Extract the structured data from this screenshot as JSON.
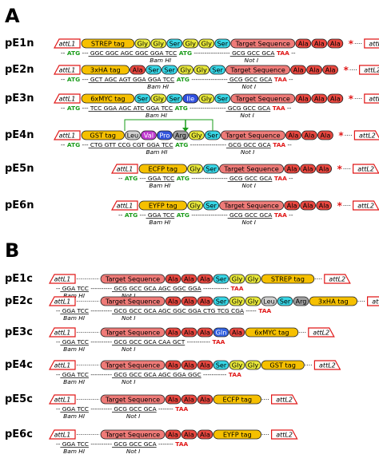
{
  "panels": [
    {
      "label": "A",
      "rows": [
        {
          "name": "pE1n",
          "left": "attL1",
          "right": "attL2",
          "tags": [
            "STREP tag",
            "Gly",
            "Gly",
            "Ser",
            "Gly",
            "Gly",
            "Ser",
            "Target Sequence",
            "Ala",
            "Ala",
            "Ala"
          ],
          "stop": "*",
          "line1": [
            "--",
            "ATG",
            "---",
            "GGC GGC AGC GGC GGA TCC",
            "ATG",
            "-----------------",
            "GCG GCC GCA",
            "TAA",
            "--"
          ],
          "site1": "Bam HI",
          "site2": "Not I"
        },
        {
          "name": "pE2n",
          "left": "attL1",
          "right": "attL2",
          "tags": [
            "3xHA tag",
            "Ala",
            "Ser",
            "Ser",
            "Gly",
            "Gly",
            "Ser",
            "Target Sequence",
            "Ala",
            "Ala",
            "Ala"
          ],
          "stop": "*",
          "line1": [
            "--",
            "ATG",
            "---",
            "GCT AGC AGT GGA GGA TCC",
            "ATG",
            "-----------------",
            "GCG GCC GCA",
            "TAA",
            "--"
          ],
          "site1": "Bam HI",
          "site2": "Not I"
        },
        {
          "name": "pE3n",
          "left": "attL1",
          "right": "attL2",
          "tags": [
            "6xMYC tag",
            "Ser",
            "Gly",
            "Ser",
            "Ile",
            "Gly",
            "Ser",
            "Target Sequence",
            "Ala",
            "Ala",
            "Ala"
          ],
          "stop": "*",
          "line1": [
            "--",
            "ATG",
            "---",
            "TCC GGA AGC ATC GGA TCC",
            "ATG",
            "-----------------",
            "GCG GCC GCA",
            "TAA",
            "--"
          ],
          "site1": "Bam HI",
          "site2": "Not I"
        },
        {
          "name": "pE4n",
          "left": "attL1",
          "right": "attL2",
          "tags": [
            "GST tag",
            "Leu",
            "Val",
            "Pro",
            "Arg",
            "Gly",
            "Ser",
            "Target Sequence",
            "Ala",
            "Ala",
            "Ala"
          ],
          "stop": "*",
          "line1": [
            "--",
            "ATG",
            "---",
            "CTG GTT CCG CGT GGA TCC",
            "ATG",
            "-----------------",
            "GCG GCC GCA",
            "TAA",
            "--"
          ],
          "site1": "Bam HI",
          "site2": "Not I"
        },
        {
          "name": "pE5n",
          "left": "attL1",
          "right": "attL2",
          "tags": [
            "ECFP tag",
            "Gly",
            "Ser",
            "Target Sequence",
            "Ala",
            "Ala",
            "Ala"
          ],
          "stop": "*",
          "line1": [
            "--",
            "ATG",
            "---",
            "GGA TCC",
            "ATG",
            "-----------------",
            "GCG GCC GCA",
            "TAA",
            "--"
          ],
          "site1": "Bam HI",
          "site2": "Not I"
        },
        {
          "name": "pE6n",
          "left": "attL1",
          "right": "attL2",
          "tags": [
            "EYFP tag",
            "Gly",
            "Ser",
            "Target Sequence",
            "Ala",
            "Ala",
            "Ala"
          ],
          "stop": "*",
          "line1": [
            "--",
            "ATG",
            "---",
            "GGA TCC",
            "ATG",
            "-----------------",
            "GCG GCC GCA",
            "TAA",
            "--"
          ],
          "site1": "Bam HI",
          "site2": "Not I"
        }
      ]
    },
    {
      "label": "B",
      "rows": [
        {
          "name": "pE1c",
          "left": "attL1",
          "right": "attL2",
          "tags": [
            "Target Sequence",
            "Ala",
            "Ala",
            "Ala",
            "Ser",
            "Gly",
            "Gly",
            "STREP tag"
          ],
          "line1": [
            "--",
            "GGA TCC",
            "----------",
            "GCG GCC GCA AGC GGC GGA",
            "------------",
            "TAA"
          ],
          "site1": "Bam HI",
          "site2": "Not I"
        },
        {
          "name": "pE2c",
          "left": "attL1",
          "right": "attL2",
          "tags": [
            "Target Sequence",
            "Ala",
            "Ala",
            "Ala",
            "Ser",
            "Gly",
            "Gly",
            "Leu",
            "Ser",
            "Arg",
            "3xHA tag"
          ],
          "line1": [
            "--",
            "GGA TCC",
            "----------",
            "GCG GCC GCA AGC GGC GGA CTG TCG CGA",
            "-----",
            "TAA"
          ],
          "site1": "Bam HI",
          "site2": "Not I"
        },
        {
          "name": "pE3c",
          "left": "attL1",
          "right": "attL2",
          "tags": [
            "Target Sequence",
            "Ala",
            "Ala",
            "Ala",
            "Gln",
            "Ala",
            "6xMYC tag"
          ],
          "line1": [
            "--",
            "GGA TCC",
            "----------",
            "GCG GCC GCA CAA GCT",
            "-----------",
            "TAA"
          ],
          "site1": "Bam HI",
          "site2": "Not I"
        },
        {
          "name": "pE4c",
          "left": "attL1",
          "right": "attL2",
          "tags": [
            "Target Sequence",
            "Ala",
            "Ala",
            "Ala",
            "Ser",
            "Gly",
            "Gly",
            "GST tag"
          ],
          "line1": [
            "--",
            "GGA TCC",
            "----------",
            "GCG GCC GCA AGC GGA GGC",
            "-----------",
            "TAA"
          ],
          "site1": "Bam HI",
          "site2": "Not I"
        },
        {
          "name": "pE5c",
          "left": "attL1",
          "right": "attL2",
          "tags": [
            "Target Sequence",
            "Ala",
            "Ala",
            "Ala",
            "ECFP tag"
          ],
          "line1": [
            "--",
            "GGA TCC",
            "----------",
            "GCG GCC GCA",
            "-------",
            "TAA"
          ],
          "site1": "Bam HI",
          "site2": "Not I"
        },
        {
          "name": "pE6c",
          "left": "attL1",
          "right": "attL2",
          "tags": [
            "Target Sequence",
            "Ala",
            "Ala",
            "Ala",
            "EYFP tag"
          ],
          "line1": [
            "--",
            "GGA TCC",
            "----------",
            "GCG GCC GCA",
            "-------",
            "TAA"
          ],
          "site1": "Bam HI",
          "site2": "Not I"
        }
      ]
    }
  ],
  "colors": {
    "tag": "#f6c000",
    "gly": "#e8e83a",
    "ser": "#37d6e6",
    "ala": "#e8473f",
    "target": "#ef7b78",
    "leu": "#d0d0d0",
    "val": "#c03bd0",
    "pro": "#3355dd",
    "arg": "#a0a0a0",
    "ile": "#2f4fe0",
    "gln": "#3060e0",
    "atg": "#1a9c1a",
    "taa": "#e01818",
    "att": "#e01818",
    "stop": "#e01818"
  }
}
